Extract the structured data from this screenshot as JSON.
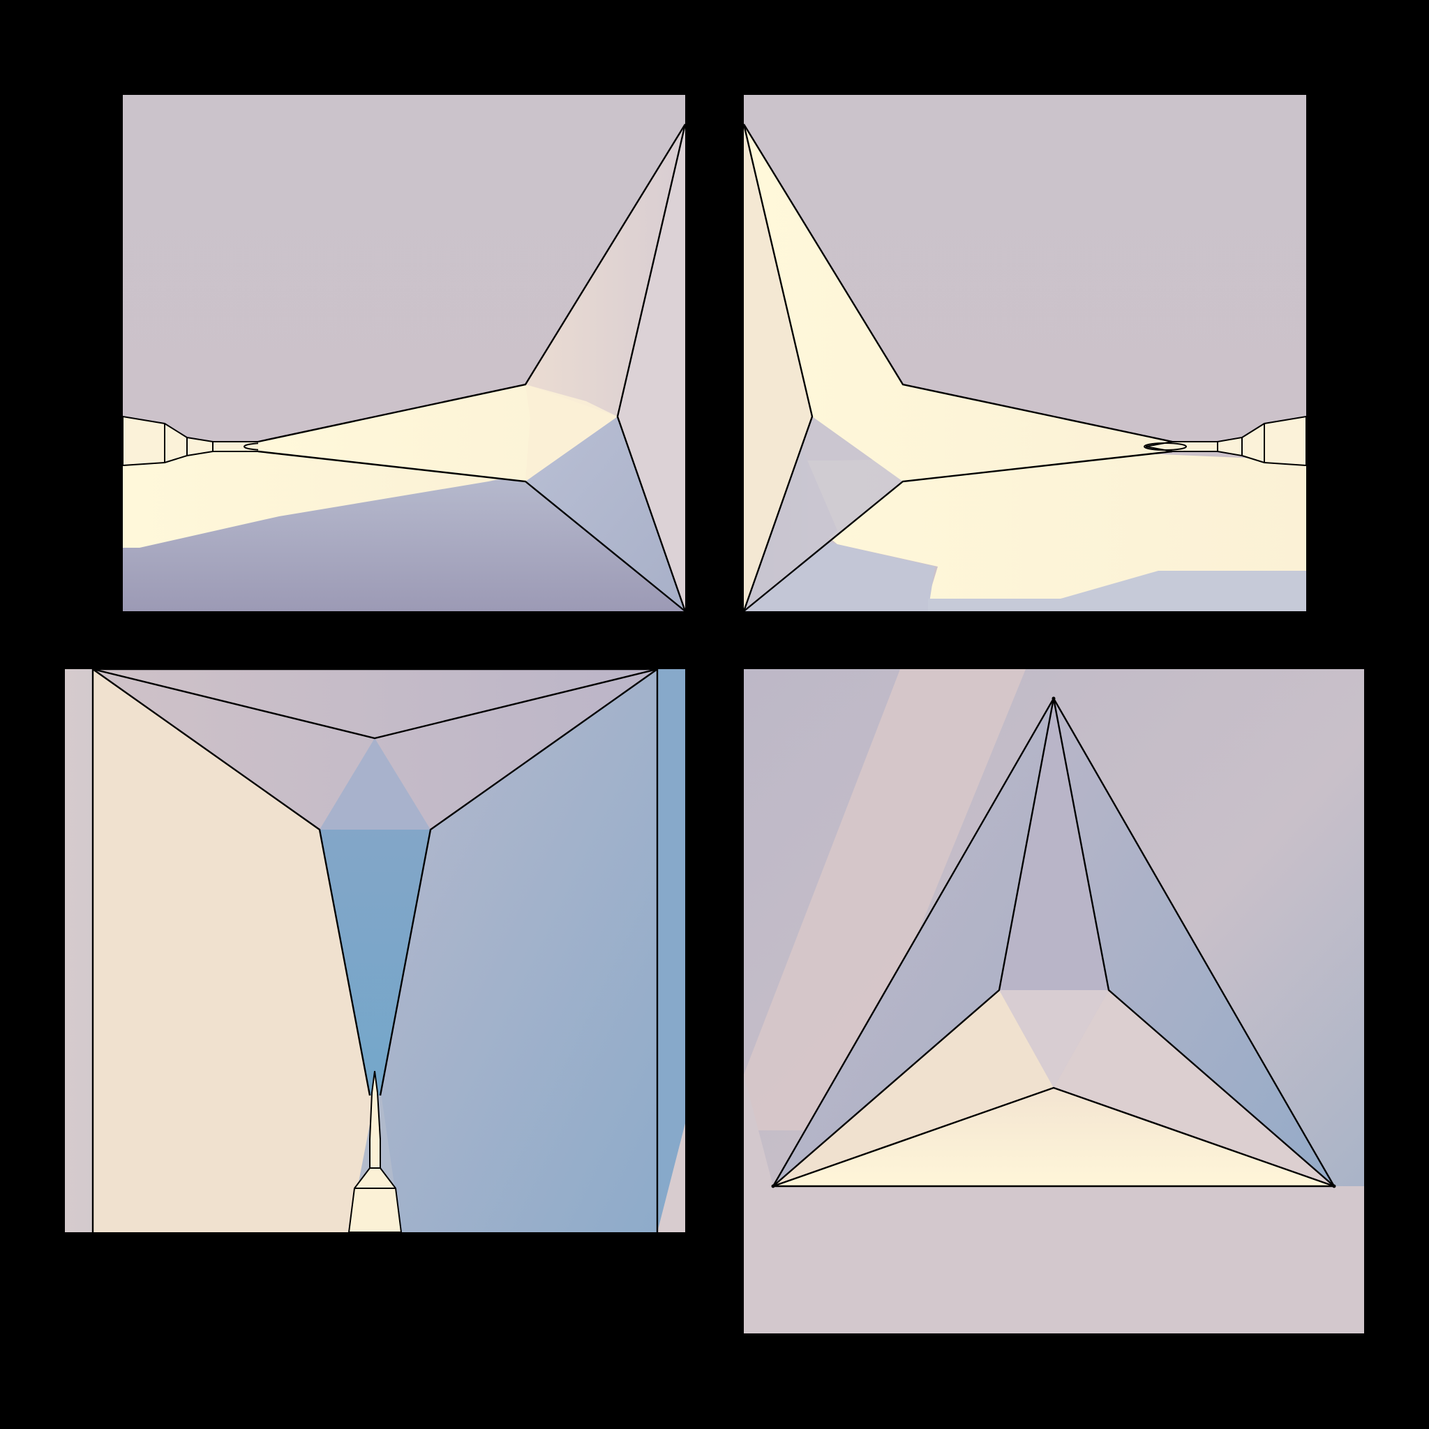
{
  "background_color": "#000000",
  "palette": {
    "sky": "#CBC3CB",
    "sky_blue": "#A5AFC6",
    "cream": "#FFF8DA",
    "peach": "#F0E1CF",
    "steel_blue": "#7FA8C9",
    "edge": "#000000"
  },
  "panels": [
    {
      "name": "top-left-view",
      "label": ""
    },
    {
      "name": "top-right-view",
      "label": ""
    },
    {
      "name": "bottom-left-view",
      "label": ""
    },
    {
      "name": "bottom-right-view",
      "label": ""
    }
  ]
}
